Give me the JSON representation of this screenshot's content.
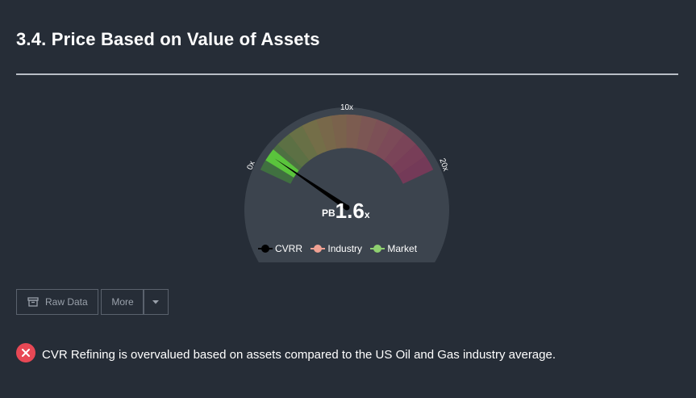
{
  "section": {
    "title": "3.4. Price Based on Value of Assets"
  },
  "gauge": {
    "min_label": "0x",
    "mid_label": "10x",
    "max_label": "20x",
    "range": [
      0,
      20
    ],
    "prefix": "PB",
    "value_text": "1.6",
    "suffix": "x",
    "value": 1.6,
    "colors": {
      "dial": "#3c444e",
      "rim": "#3d4650",
      "highlight": "#5ac43c",
      "needle": "#000000"
    }
  },
  "legend": [
    {
      "label": "CVRR",
      "color": "#000000"
    },
    {
      "label": "Industry",
      "color": "#f0a193"
    },
    {
      "label": "Market",
      "color": "#8fd070"
    }
  ],
  "toolbar": {
    "raw_data_label": "Raw Data",
    "more_label": "More",
    "raw_data_icon": "archive-icon",
    "more_icon": "caret-down-icon"
  },
  "alert": {
    "icon": "close-circle-icon",
    "icon_color": "#e84855",
    "text": "CVR Refining is overvalued based on assets compared to the US Oil and Gas industry average."
  }
}
